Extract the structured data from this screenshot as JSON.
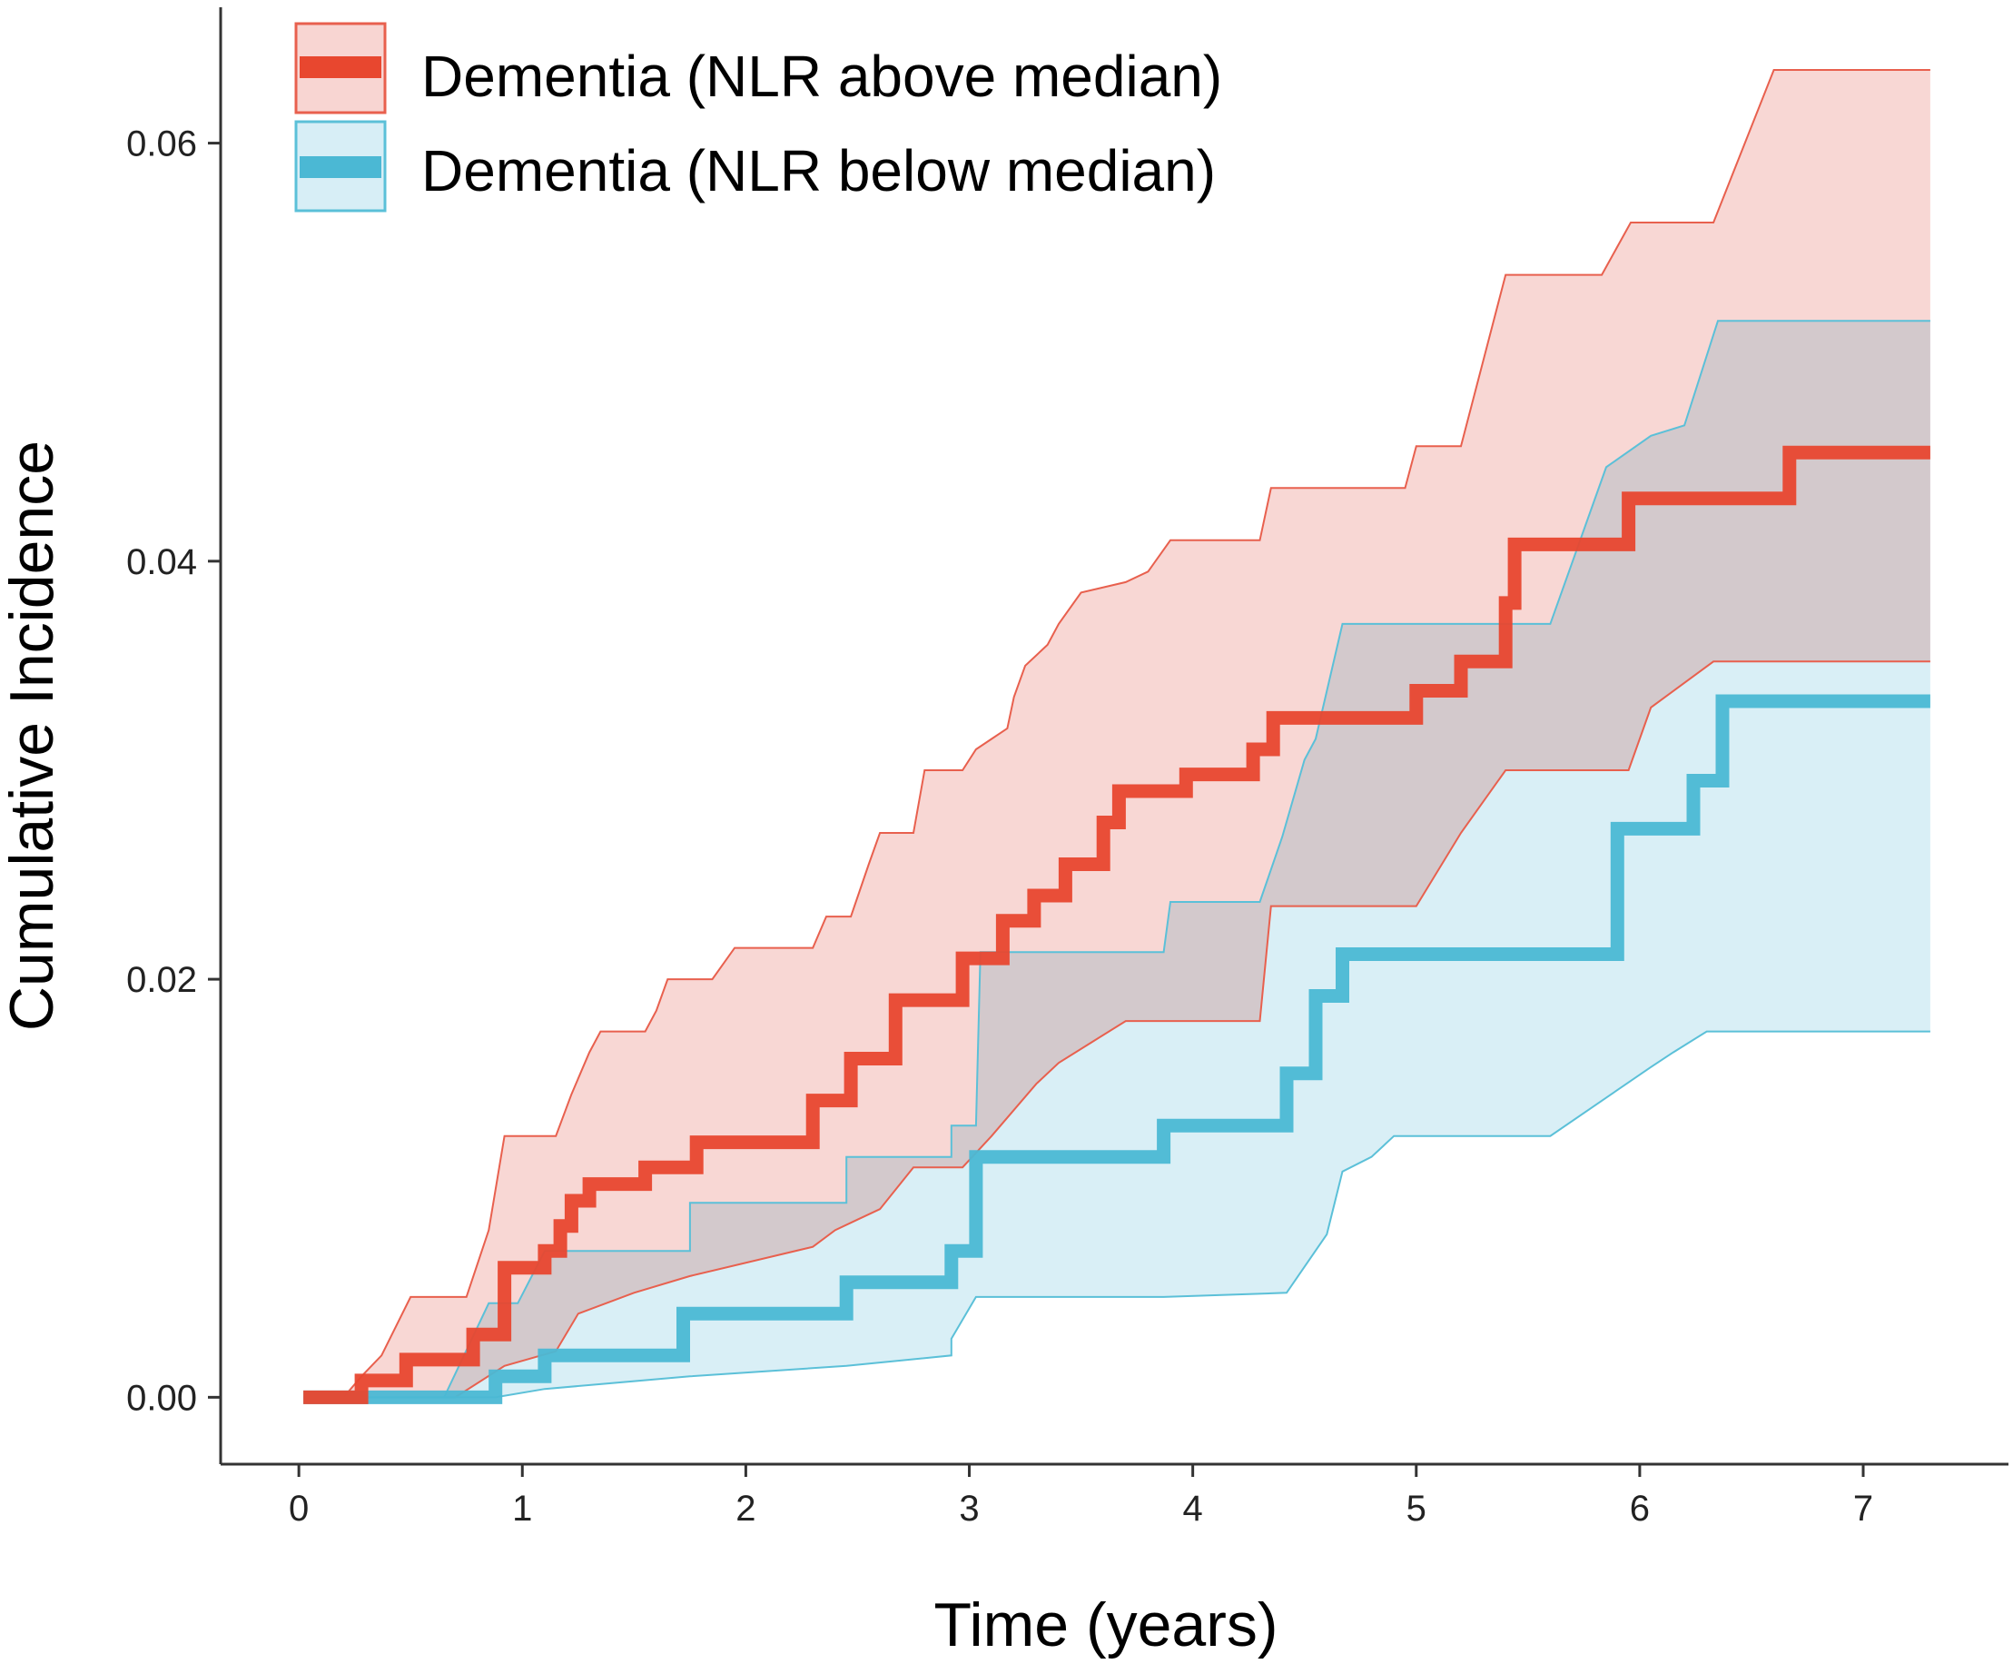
{
  "chart_data": {
    "type": "line",
    "subtype": "step-with-confidence-bands",
    "title": "",
    "xlabel": "Time (years)",
    "ylabel": "Cumulative Incidence",
    "xlim": [
      -0.35,
      7.65
    ],
    "ylim": [
      -0.0032,
      0.0665
    ],
    "x_ticks": [
      0,
      1,
      2,
      3,
      4,
      5,
      6,
      7
    ],
    "x_tick_labels": [
      "0",
      "1",
      "2",
      "3",
      "4",
      "5",
      "6",
      "7"
    ],
    "y_ticks": [
      0.0,
      0.02,
      0.04,
      0.06
    ],
    "y_tick_labels": [
      "0.00",
      "0.02",
      "0.04",
      "0.06"
    ],
    "grid": false,
    "legend_position": "top-left",
    "series": [
      {
        "name": "Dementia (NLR above median)",
        "color": "#E8472F",
        "band_fill": "#F8D5D2",
        "band_edge": "#E8604E",
        "estimate": [
          [
            0.02,
            0.0
          ],
          [
            0.28,
            0.0
          ],
          [
            0.28,
            0.0008
          ],
          [
            0.48,
            0.0008
          ],
          [
            0.48,
            0.0018
          ],
          [
            0.78,
            0.0018
          ],
          [
            0.78,
            0.003
          ],
          [
            0.92,
            0.003
          ],
          [
            0.92,
            0.0062
          ],
          [
            1.1,
            0.0062
          ],
          [
            1.1,
            0.007
          ],
          [
            1.17,
            0.007
          ],
          [
            1.17,
            0.0082
          ],
          [
            1.22,
            0.0082
          ],
          [
            1.22,
            0.0094
          ],
          [
            1.3,
            0.0094
          ],
          [
            1.3,
            0.0102
          ],
          [
            1.55,
            0.0102
          ],
          [
            1.55,
            0.011
          ],
          [
            1.78,
            0.011
          ],
          [
            1.78,
            0.0122
          ],
          [
            2.3,
            0.0122
          ],
          [
            2.3,
            0.0142
          ],
          [
            2.47,
            0.0142
          ],
          [
            2.47,
            0.0162
          ],
          [
            2.67,
            0.0162
          ],
          [
            2.67,
            0.019
          ],
          [
            2.97,
            0.019
          ],
          [
            2.97,
            0.021
          ],
          [
            3.15,
            0.021
          ],
          [
            3.15,
            0.0228
          ],
          [
            3.29,
            0.0228
          ],
          [
            3.29,
            0.024
          ],
          [
            3.43,
            0.024
          ],
          [
            3.43,
            0.0255
          ],
          [
            3.6,
            0.0255
          ],
          [
            3.6,
            0.0275
          ],
          [
            3.67,
            0.0275
          ],
          [
            3.67,
            0.029
          ],
          [
            3.97,
            0.029
          ],
          [
            3.97,
            0.0298
          ],
          [
            4.27,
            0.0298
          ],
          [
            4.27,
            0.031
          ],
          [
            4.36,
            0.031
          ],
          [
            4.36,
            0.0325
          ],
          [
            5.0,
            0.0325
          ],
          [
            5.0,
            0.0338
          ],
          [
            5.2,
            0.0338
          ],
          [
            5.2,
            0.0352
          ],
          [
            5.4,
            0.0352
          ],
          [
            5.4,
            0.038
          ],
          [
            5.44,
            0.038
          ],
          [
            5.44,
            0.0408
          ],
          [
            5.95,
            0.0408
          ],
          [
            5.95,
            0.043
          ],
          [
            6.67,
            0.043
          ],
          [
            6.67,
            0.0452
          ],
          [
            7.3,
            0.0452
          ]
        ],
        "upper": [
          [
            0.2,
            0.0
          ],
          [
            0.28,
            0.001
          ],
          [
            0.37,
            0.002
          ],
          [
            0.5,
            0.0048
          ],
          [
            0.75,
            0.0048
          ],
          [
            0.85,
            0.008
          ],
          [
            0.92,
            0.0125
          ],
          [
            1.15,
            0.0125
          ],
          [
            1.22,
            0.0145
          ],
          [
            1.3,
            0.0165
          ],
          [
            1.35,
            0.0175
          ],
          [
            1.55,
            0.0175
          ],
          [
            1.6,
            0.0185
          ],
          [
            1.65,
            0.02
          ],
          [
            1.85,
            0.02
          ],
          [
            1.95,
            0.0215
          ],
          [
            2.3,
            0.0215
          ],
          [
            2.36,
            0.023
          ],
          [
            2.47,
            0.023
          ],
          [
            2.55,
            0.0255
          ],
          [
            2.6,
            0.027
          ],
          [
            2.75,
            0.027
          ],
          [
            2.8,
            0.03
          ],
          [
            2.97,
            0.03
          ],
          [
            3.03,
            0.031
          ],
          [
            3.1,
            0.0315
          ],
          [
            3.17,
            0.032
          ],
          [
            3.2,
            0.0335
          ],
          [
            3.25,
            0.035
          ],
          [
            3.35,
            0.036
          ],
          [
            3.4,
            0.037
          ],
          [
            3.5,
            0.0385
          ],
          [
            3.7,
            0.039
          ],
          [
            3.8,
            0.0395
          ],
          [
            3.9,
            0.041
          ],
          [
            4.3,
            0.041
          ],
          [
            4.35,
            0.0435
          ],
          [
            4.95,
            0.0435
          ],
          [
            5.0,
            0.0455
          ],
          [
            5.2,
            0.0455
          ],
          [
            5.4,
            0.0537
          ],
          [
            5.83,
            0.0537
          ],
          [
            5.96,
            0.0562
          ],
          [
            6.33,
            0.0562
          ],
          [
            6.6,
            0.0635
          ],
          [
            7.3,
            0.0635
          ]
        ],
        "lower": [
          [
            0.02,
            0.0
          ],
          [
            0.7,
            0.0
          ],
          [
            0.92,
            0.0015
          ],
          [
            1.15,
            0.0022
          ],
          [
            1.25,
            0.004
          ],
          [
            1.5,
            0.005
          ],
          [
            1.75,
            0.0058
          ],
          [
            2.3,
            0.0072
          ],
          [
            2.4,
            0.008
          ],
          [
            2.5,
            0.0085
          ],
          [
            2.6,
            0.009
          ],
          [
            2.75,
            0.011
          ],
          [
            2.97,
            0.011
          ],
          [
            3.1,
            0.0125
          ],
          [
            3.3,
            0.015
          ],
          [
            3.4,
            0.016
          ],
          [
            3.55,
            0.017
          ],
          [
            3.7,
            0.018
          ],
          [
            4.3,
            0.018
          ],
          [
            4.35,
            0.0235
          ],
          [
            5.0,
            0.0235
          ],
          [
            5.2,
            0.027
          ],
          [
            5.4,
            0.03
          ],
          [
            5.95,
            0.03
          ],
          [
            6.05,
            0.033
          ],
          [
            6.33,
            0.0352
          ],
          [
            7.3,
            0.0352
          ]
        ]
      },
      {
        "name": "Dementia (NLR below median)",
        "color": "#4BB8D4",
        "band_fill": "#D7EEF6",
        "band_edge": "#5BC0D8",
        "estimate": [
          [
            0.02,
            0.0
          ],
          [
            0.88,
            0.0
          ],
          [
            0.88,
            0.001
          ],
          [
            1.1,
            0.001
          ],
          [
            1.1,
            0.002
          ],
          [
            1.72,
            0.002
          ],
          [
            1.72,
            0.004
          ],
          [
            2.45,
            0.004
          ],
          [
            2.45,
            0.0055
          ],
          [
            2.92,
            0.0055
          ],
          [
            2.92,
            0.007
          ],
          [
            3.03,
            0.007
          ],
          [
            3.03,
            0.0115
          ],
          [
            3.87,
            0.0115
          ],
          [
            3.87,
            0.013
          ],
          [
            4.42,
            0.013
          ],
          [
            4.42,
            0.0155
          ],
          [
            4.55,
            0.0155
          ],
          [
            4.55,
            0.0192
          ],
          [
            4.67,
            0.0192
          ],
          [
            4.67,
            0.0212
          ],
          [
            5.9,
            0.0212
          ],
          [
            5.9,
            0.0272
          ],
          [
            6.24,
            0.0272
          ],
          [
            6.24,
            0.0295
          ],
          [
            6.37,
            0.0295
          ],
          [
            6.37,
            0.0333
          ],
          [
            7.3,
            0.0333
          ]
        ],
        "upper": [
          [
            0.02,
            0.0
          ],
          [
            0.65,
            0.0
          ],
          [
            0.85,
            0.0045
          ],
          [
            0.98,
            0.0045
          ],
          [
            1.1,
            0.007
          ],
          [
            1.75,
            0.007
          ],
          [
            1.75,
            0.0093
          ],
          [
            2.45,
            0.0093
          ],
          [
            2.45,
            0.0115
          ],
          [
            2.92,
            0.0115
          ],
          [
            2.92,
            0.013
          ],
          [
            3.03,
            0.013
          ],
          [
            3.05,
            0.0213
          ],
          [
            3.87,
            0.0213
          ],
          [
            3.9,
            0.0237
          ],
          [
            4.3,
            0.0237
          ],
          [
            4.4,
            0.0268
          ],
          [
            4.5,
            0.0305
          ],
          [
            4.55,
            0.0315
          ],
          [
            4.67,
            0.037
          ],
          [
            5.6,
            0.037
          ],
          [
            5.85,
            0.0445
          ],
          [
            6.05,
            0.046
          ],
          [
            6.2,
            0.0465
          ],
          [
            6.35,
            0.0515
          ],
          [
            7.3,
            0.0515
          ]
        ],
        "lower": [
          [
            0.02,
            0.0
          ],
          [
            0.88,
            0.0
          ],
          [
            1.1,
            0.0004
          ],
          [
            1.75,
            0.001
          ],
          [
            2.45,
            0.0015
          ],
          [
            2.92,
            0.002
          ],
          [
            2.92,
            0.0028
          ],
          [
            3.03,
            0.0048
          ],
          [
            3.87,
            0.0048
          ],
          [
            4.42,
            0.005
          ],
          [
            4.6,
            0.0078
          ],
          [
            4.67,
            0.0108
          ],
          [
            4.8,
            0.0115
          ],
          [
            4.9,
            0.0125
          ],
          [
            5.6,
            0.0125
          ],
          [
            6.05,
            0.0158
          ],
          [
            6.15,
            0.0165
          ],
          [
            6.3,
            0.0175
          ],
          [
            7.3,
            0.0175
          ]
        ]
      }
    ]
  }
}
